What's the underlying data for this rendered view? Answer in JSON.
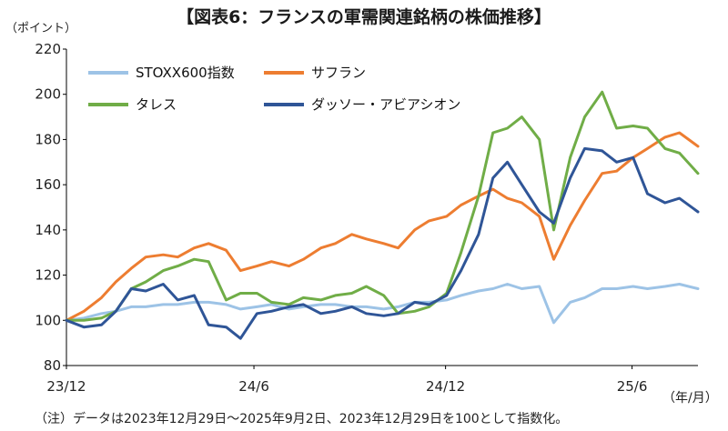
{
  "title": "【図表6：フランスの軍需関連銘柄の株価推移】",
  "y_unit": "（ポイント）",
  "x_unit": "（年/月）",
  "note": "（注）データは2023年12月29日～2025年9月2日、2023年12月29日を100として指数化。",
  "colors": {
    "stoxx600": "#9dc3e6",
    "safran": "#ed7d31",
    "thales": "#70ad47",
    "dassault": "#2f5597",
    "axis": "#000000",
    "grid": "#d9d9d9"
  },
  "chart_data": {
    "type": "line",
    "title": "【図表6：フランスの軍需関連銘柄の株価推移】",
    "xlabel": "（年/月）",
    "ylabel": "（ポイント）",
    "ylim": [
      80,
      220
    ],
    "yticks": [
      80,
      100,
      120,
      140,
      160,
      180,
      200,
      220
    ],
    "grid": false,
    "legend_position": "top-left",
    "x_ticks": [
      "23/12",
      "24/6",
      "24/12",
      "25/6"
    ],
    "x": [
      "2023-12-29",
      "2024-01-15",
      "2024-02-01",
      "2024-02-15",
      "2024-03-01",
      "2024-03-15",
      "2024-04-01",
      "2024-04-15",
      "2024-05-01",
      "2024-05-15",
      "2024-06-01",
      "2024-06-15",
      "2024-07-01",
      "2024-07-15",
      "2024-08-01",
      "2024-08-15",
      "2024-09-01",
      "2024-09-15",
      "2024-10-01",
      "2024-10-15",
      "2024-11-01",
      "2024-11-15",
      "2024-12-01",
      "2024-12-15",
      "2025-01-01",
      "2025-01-15",
      "2025-02-01",
      "2025-02-15",
      "2025-03-01",
      "2025-03-15",
      "2025-04-01",
      "2025-04-15",
      "2025-05-01",
      "2025-05-15",
      "2025-06-01",
      "2025-06-15",
      "2025-07-01",
      "2025-07-15",
      "2025-08-01",
      "2025-08-15",
      "2025-09-02"
    ],
    "series": [
      {
        "name": "STOXX600指数",
        "color": "#9dc3e6",
        "values": [
          100,
          101,
          103,
          104,
          106,
          106,
          107,
          107,
          108,
          108,
          107,
          105,
          106,
          107,
          105,
          106,
          107,
          107,
          106,
          106,
          105,
          106,
          108,
          108,
          109,
          111,
          113,
          114,
          116,
          114,
          115,
          99,
          108,
          110,
          114,
          114,
          115,
          114,
          115,
          116,
          114
        ]
      },
      {
        "name": "サフラン",
        "color": "#ed7d31",
        "values": [
          100,
          104,
          110,
          117,
          123,
          128,
          129,
          128,
          132,
          134,
          131,
          122,
          124,
          126,
          124,
          127,
          132,
          134,
          138,
          136,
          134,
          132,
          140,
          144,
          146,
          151,
          155,
          158,
          154,
          152,
          146,
          127,
          142,
          153,
          165,
          166,
          172,
          176,
          181,
          183,
          177
        ]
      },
      {
        "name": "タレス",
        "color": "#70ad47",
        "values": [
          100,
          100,
          101,
          104,
          114,
          117,
          122,
          124,
          127,
          126,
          109,
          112,
          112,
          108,
          107,
          110,
          109,
          111,
          112,
          115,
          111,
          103,
          104,
          106,
          112,
          130,
          155,
          183,
          185,
          190,
          180,
          140,
          172,
          190,
          201,
          185,
          186,
          185,
          176,
          174,
          165
        ]
      },
      {
        "name": "ダッソー・アビアシオン",
        "color": "#2f5597",
        "values": [
          100,
          97,
          98,
          104,
          114,
          113,
          116,
          109,
          111,
          98,
          97,
          92,
          103,
          104,
          106,
          107,
          103,
          104,
          106,
          103,
          102,
          103,
          108,
          107,
          111,
          122,
          138,
          163,
          170,
          160,
          148,
          143,
          163,
          176,
          175,
          170,
          172,
          156,
          152,
          154,
          148
        ]
      }
    ]
  }
}
